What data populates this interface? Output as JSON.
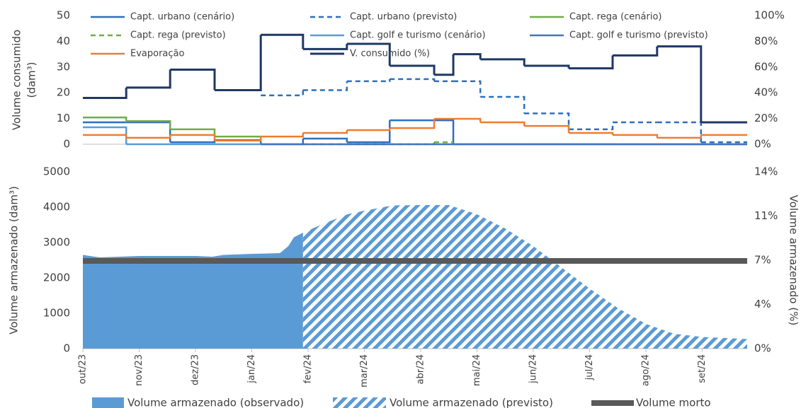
{
  "chart_data": [
    {
      "type": "line",
      "step": true,
      "y_label": [
        "Volume consumido",
        "(dam³)"
      ],
      "xlim": [
        0,
        11.8
      ],
      "ylim": [
        0,
        50
      ],
      "yticks": [
        0,
        10,
        20,
        30,
        40,
        50
      ],
      "y2lim": [
        0,
        100
      ],
      "y2ticks": [
        {
          "value": 0,
          "label": "0%"
        },
        {
          "value": 20,
          "label": "20%"
        },
        {
          "value": 40,
          "label": "40%"
        },
        {
          "value": 60,
          "label": "60%"
        },
        {
          "value": 80,
          "label": "80%"
        },
        {
          "value": 100,
          "label": "100%"
        }
      ],
      "x": [
        0,
        0.77,
        1.55,
        2.34,
        3.16,
        3.91,
        4.69,
        5.45,
        6.24,
        6.58,
        7.06,
        7.84,
        8.63,
        9.41,
        10.2,
        10.98,
        11.8
      ],
      "series": [
        {
          "name": "Capt. urbano (cenário)",
          "color": "#2e6fbd",
          "dash": false,
          "values": [
            8.5,
            8.5,
            0.8,
            1.6,
            0,
            2.2,
            0.8,
            9.3,
            9.3,
            0,
            0,
            0,
            0,
            0,
            0,
            0,
            null
          ]
        },
        {
          "name": "Capt. urbano (previsto)",
          "color": "#2e6fbd",
          "dash": true,
          "values": [
            null,
            null,
            null,
            null,
            19,
            21,
            24.5,
            25.3,
            24.5,
            24.5,
            18.4,
            12,
            5.8,
            8.5,
            8.5,
            0.8,
            null
          ]
        },
        {
          "name": "Capt. rega (cenário)",
          "color": "#70ad47",
          "dash": false,
          "values": [
            10.4,
            9,
            5.8,
            3,
            null,
            null,
            null,
            null,
            null,
            null,
            null,
            null,
            null,
            null,
            null,
            null,
            null
          ]
        },
        {
          "name": "Capt. rega (previsto)",
          "color": "#70ad47",
          "dash": true,
          "values": [
            null,
            null,
            null,
            null,
            null,
            0,
            0,
            0,
            0.8,
            null,
            null,
            null,
            null,
            null,
            null,
            null,
            null
          ]
        },
        {
          "name": "Capt. golf e turismo (cenário)",
          "color": "#5b9bd5",
          "dash": false,
          "values": [
            6.6,
            0,
            0,
            0,
            null,
            null,
            null,
            null,
            null,
            null,
            null,
            null,
            null,
            null,
            null,
            null,
            null
          ]
        },
        {
          "name": "Capt. golf e turismo (previsto)",
          "color": "#4472c4",
          "dash": false,
          "values": [
            null,
            null,
            null,
            null,
            0,
            0,
            0,
            0,
            0,
            0,
            0,
            0,
            0,
            0,
            0,
            0,
            null
          ]
        },
        {
          "name": "Evaporação",
          "color": "#ed7d31",
          "dash": false,
          "values": [
            3.6,
            2.5,
            3.6,
            1.4,
            3,
            4.4,
            5.5,
            6.3,
            9.9,
            9.9,
            8.5,
            7.1,
            4.4,
            3.6,
            2.5,
            3.6,
            null
          ]
        },
        {
          "name": "V. consumido (%)",
          "color": "#1f3864",
          "dash": false,
          "axis": "y2",
          "values": [
            36,
            44,
            58,
            42,
            85,
            74,
            78,
            61,
            54,
            70,
            66,
            61,
            59,
            69,
            76,
            17,
            null
          ]
        }
      ]
    },
    {
      "type": "area",
      "y_label": "Volume armazenado (dam³)",
      "y2_label": "Volume armazenado (%)",
      "xlim": [
        0,
        11.8
      ],
      "ylim": [
        0,
        5000
      ],
      "yticks": [
        0,
        1000,
        2000,
        3000,
        4000,
        5000
      ],
      "y2lim": [
        0,
        14
      ],
      "y2ticks": [
        {
          "value": 0,
          "label": "0%"
        },
        {
          "value": 3.5,
          "label": "4%"
        },
        {
          "value": 7,
          "label": "7%"
        },
        {
          "value": 10.5,
          "label": "11%"
        },
        {
          "value": 14,
          "label": "14%"
        }
      ],
      "xticks": [
        {
          "value": 0,
          "label": "out/23"
        },
        {
          "value": 1,
          "label": "nov/23"
        },
        {
          "value": 2,
          "label": "dez/23"
        },
        {
          "value": 3,
          "label": "jan/24"
        },
        {
          "value": 4,
          "label": "fev/24"
        },
        {
          "value": 5,
          "label": "mar/24"
        },
        {
          "value": 6,
          "label": "abr/24"
        },
        {
          "value": 7,
          "label": "mai/24"
        },
        {
          "value": 8,
          "label": "jun/24"
        },
        {
          "value": 9,
          "label": "jul/24"
        },
        {
          "value": 10,
          "label": "ago/24"
        },
        {
          "value": 11,
          "label": "set/24"
        }
      ],
      "series": [
        {
          "name": "Volume armazenado (observado)",
          "color": "#5b9bd5",
          "pattern": "solid",
          "x": [
            0,
            0.3,
            1,
            2,
            2.3,
            2.5,
            3,
            3.5,
            3.65,
            3.75,
            3.91
          ],
          "values": [
            2650,
            2580,
            2620,
            2620,
            2600,
            2650,
            2680,
            2700,
            2900,
            3150,
            3280
          ]
        },
        {
          "name": "Volume armazenado (previsto)",
          "color": "#5b9bd5",
          "pattern": "hatch",
          "x": [
            3.91,
            4.3,
            4.7,
            5,
            5.5,
            6,
            6.5,
            7,
            7.5,
            8,
            8.5,
            9,
            9.5,
            10,
            10.5,
            11,
            11.8
          ],
          "values": [
            3280,
            3550,
            3800,
            3900,
            4050,
            4060,
            4060,
            3800,
            3400,
            2900,
            2300,
            1700,
            1150,
            700,
            420,
            330,
            270
          ]
        }
      ],
      "reference_line": {
        "name": "Volume morto",
        "value": 2480,
        "color": "#595959"
      }
    }
  ]
}
